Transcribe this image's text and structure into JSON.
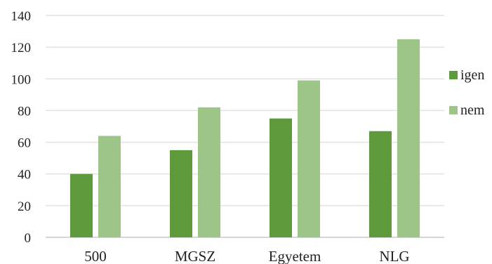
{
  "chart_data": {
    "type": "bar",
    "title": "",
    "xlabel": "",
    "ylabel": "",
    "categories": [
      "500",
      "MGSZ",
      "Egyetem",
      "NLG"
    ],
    "series": [
      {
        "name": "igen",
        "color": "#5e9a3c",
        "values": [
          40,
          55,
          75,
          67
        ]
      },
      {
        "name": "nem",
        "color": "#9dc588",
        "values": [
          64,
          82,
          99,
          125
        ]
      }
    ],
    "ylim": [
      0,
      140
    ],
    "yticks": [
      "0",
      "20",
      "40",
      "60",
      "80",
      "100",
      "120",
      "140"
    ],
    "grid": true,
    "legend": "right"
  }
}
